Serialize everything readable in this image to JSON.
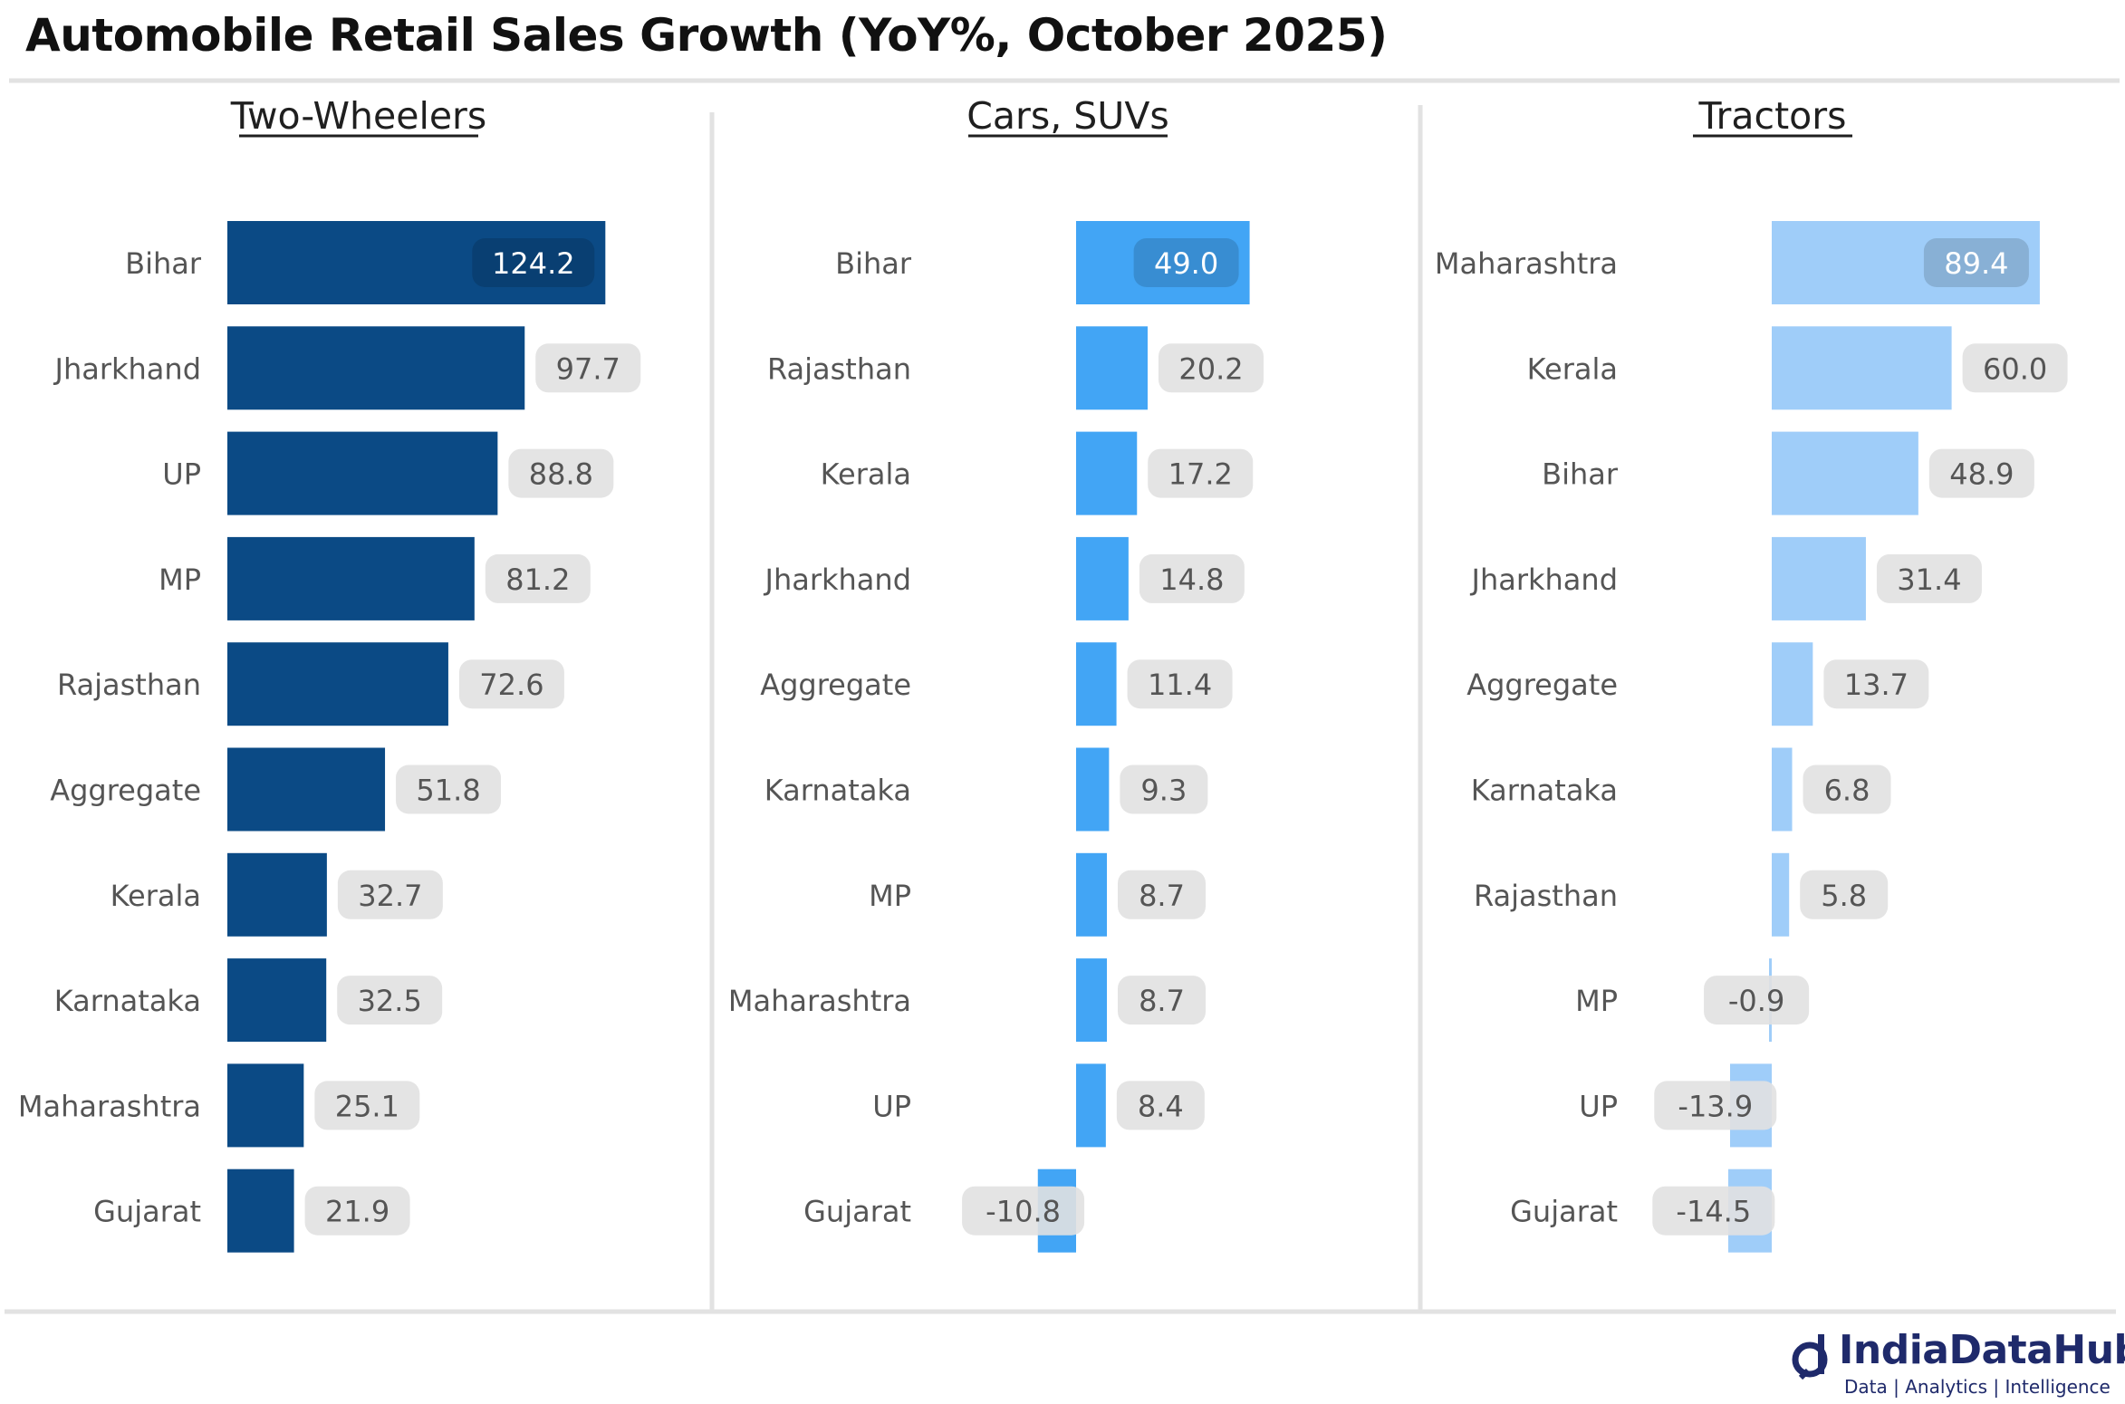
{
  "title": "Automobile Retail Sales Growth (YoY%, October 2025)",
  "logo": {
    "name": "IndiaDataHub",
    "tagline": "Data | Analytics | Intelligence"
  },
  "chart_data": [
    {
      "type": "bar",
      "orientation": "horizontal",
      "title": "Two-Wheelers",
      "color": "#0b4a85",
      "categories": [
        "Bihar",
        "Jharkhand",
        "UP",
        "MP",
        "Rajasthan",
        "Aggregate",
        "Kerala",
        "Karnataka",
        "Maharashtra",
        "Gujarat"
      ],
      "values": [
        124.2,
        97.7,
        88.8,
        81.2,
        72.6,
        51.8,
        32.7,
        32.5,
        25.1,
        21.9
      ]
    },
    {
      "type": "bar",
      "orientation": "horizontal",
      "title": "Cars, SUVs",
      "color": "#42a5f5",
      "categories": [
        "Bihar",
        "Rajasthan",
        "Kerala",
        "Jharkhand",
        "Aggregate",
        "Karnataka",
        "MP",
        "Maharashtra",
        "UP",
        "Gujarat"
      ],
      "values": [
        49.0,
        20.2,
        17.2,
        14.8,
        11.4,
        9.3,
        8.7,
        8.7,
        8.4,
        -10.8
      ]
    },
    {
      "type": "bar",
      "orientation": "horizontal",
      "title": "Tractors",
      "color": "#9fcdf9",
      "categories": [
        "Maharashtra",
        "Kerala",
        "Bihar",
        "Jharkhand",
        "Aggregate",
        "Karnataka",
        "Rajasthan",
        "MP",
        "UP",
        "Gujarat"
      ],
      "values": [
        89.4,
        60.0,
        48.9,
        31.4,
        13.7,
        6.8,
        5.8,
        -0.9,
        -13.9,
        -14.5
      ]
    }
  ]
}
